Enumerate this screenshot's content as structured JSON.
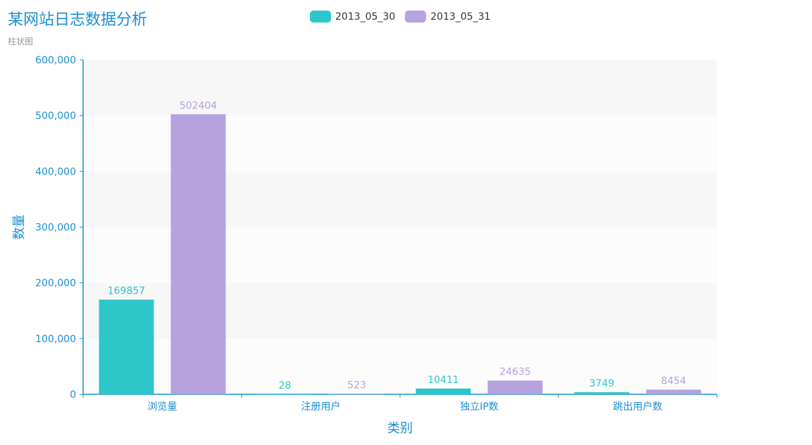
{
  "chart_data": {
    "type": "bar",
    "title": "某网站日志数据分析",
    "subtitle": "柱状图",
    "xlabel": "类别",
    "ylabel": "数量",
    "categories": [
      "浏览量",
      "注册用户",
      "独立IP数",
      "跳出用户数"
    ],
    "ylim": [
      0,
      600000
    ],
    "yticks": [
      "0",
      "100,000",
      "200,000",
      "300,000",
      "400,000",
      "500,000",
      "600,000"
    ],
    "legend_position": "top-center",
    "grid": "alternating horizontal bands",
    "series": [
      {
        "name": "2013_05_30",
        "color": "#2ec7c9",
        "values": [
          169857,
          28,
          10411,
          3749
        ],
        "labels": [
          "169857",
          "28",
          "10411",
          "3749"
        ]
      },
      {
        "name": "2013_05_31",
        "color": "#b6a2de",
        "values": [
          502404,
          523,
          24635,
          8454
        ],
        "labels": [
          "502404",
          "523",
          "24635",
          "8454"
        ]
      }
    ]
  }
}
